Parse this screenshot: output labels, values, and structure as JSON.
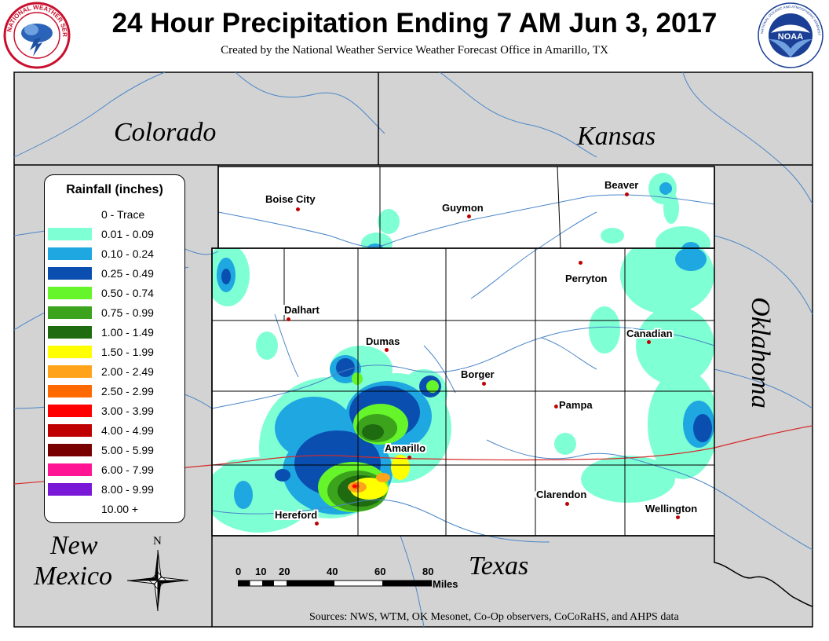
{
  "title": "24 Hour Precipitation Ending 7 AM Jun 3, 2017",
  "subtitle": "Created by the National Weather Service Weather Forecast Office in Amarillo, TX",
  "logos": {
    "left_ring_text": "NATIONAL WEATHER SERVICE",
    "right_center_text": "NOAA",
    "right_ring_text": "NATIONAL OCEANIC AND ATMOSPHERIC ADMINISTRATION · U.S. DEPARTMENT OF COMMERCE"
  },
  "legend": {
    "title": "Rainfall (inches)",
    "items": [
      {
        "label": "0 - Trace",
        "color": "#ffffff"
      },
      {
        "label": "0.01 - 0.09",
        "color": "#7fffd4"
      },
      {
        "label": "0.10 - 0.24",
        "color": "#1ea7e1"
      },
      {
        "label": "0.25 - 0.49",
        "color": "#0a4fb0"
      },
      {
        "label": "0.50 - 0.74",
        "color": "#66f52a"
      },
      {
        "label": "0.75 - 0.99",
        "color": "#3ba31c"
      },
      {
        "label": "1.00 - 1.49",
        "color": "#1f6b10"
      },
      {
        "label": "1.50 - 1.99",
        "color": "#ffff00"
      },
      {
        "label": "2.00 - 2.49",
        "color": "#ffa41a"
      },
      {
        "label": "2.50 - 2.99",
        "color": "#ff6a00"
      },
      {
        "label": "3.00 - 3.99",
        "color": "#ff0000"
      },
      {
        "label": "4.00 - 4.99",
        "color": "#bf0000"
      },
      {
        "label": "5.00 - 5.99",
        "color": "#780000"
      },
      {
        "label": "6.00 - 7.99",
        "color": "#ff1493"
      },
      {
        "label": "8.00 - 9.99",
        "color": "#7a18d8"
      },
      {
        "label": "10.00 +",
        "color": "#ffffff"
      }
    ]
  },
  "regions": {
    "colorado": "Colorado",
    "kansas": "Kansas",
    "oklahoma": "Oklahoma",
    "new_mexico_line1": "New",
    "new_mexico_line2": "Mexico",
    "texas": "Texas"
  },
  "cities": [
    {
      "name": "Boise City"
    },
    {
      "name": "Guymon"
    },
    {
      "name": "Beaver"
    },
    {
      "name": "Perryton"
    },
    {
      "name": "Dalhart"
    },
    {
      "name": "Dumas"
    },
    {
      "name": "Canadian"
    },
    {
      "name": "Borger"
    },
    {
      "name": "Pampa"
    },
    {
      "name": "Amarillo"
    },
    {
      "name": "Clarendon"
    },
    {
      "name": "Hereford"
    },
    {
      "name": "Wellington"
    }
  ],
  "scale": {
    "ticks": [
      "0",
      "10",
      "20",
      "40",
      "60",
      "80"
    ],
    "unit": "Miles"
  },
  "north_label": "N",
  "sources": "Sources:  NWS, WTM, OK Mesonet, Co-Op observers, CoCoRaHS, and AHPS data",
  "colors": {
    "state_gray": "#d3d3d3",
    "river": "#4a86c8",
    "highway": "#d62a2a",
    "county_line": "#000000"
  }
}
